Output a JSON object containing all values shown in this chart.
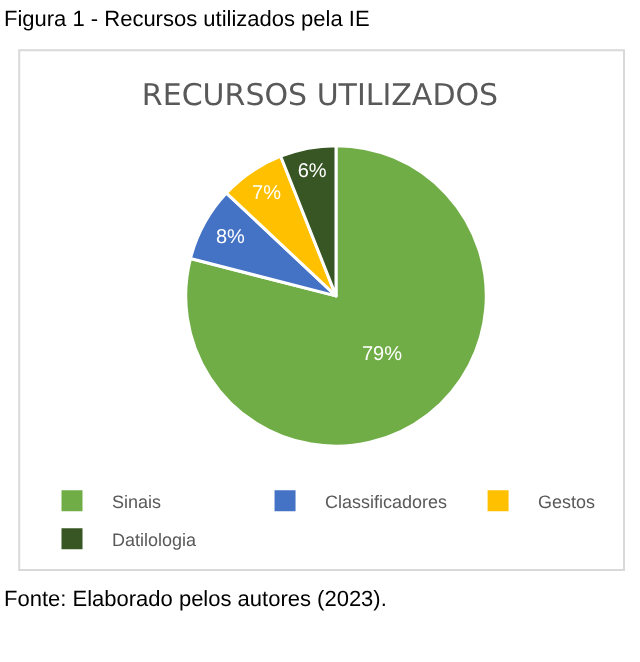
{
  "chart_data": {
    "type": "pie",
    "title": "RECURSOS UTILIZADOS",
    "categories": [
      "Sinais",
      "Classificadores",
      "Gestos",
      "Datilologia"
    ],
    "values": [
      79,
      8,
      7,
      6
    ],
    "colors": [
      "#70ad47",
      "#4472c4",
      "#ffc000",
      "#375623"
    ],
    "value_labels": [
      "79%",
      "8%",
      "7%",
      "6%"
    ],
    "legend": "bottom",
    "annotations": [
      "Figura 1 - Recursos utilizados pela IE",
      "Fonte: Elaborado pelos autores (2023)."
    ]
  }
}
